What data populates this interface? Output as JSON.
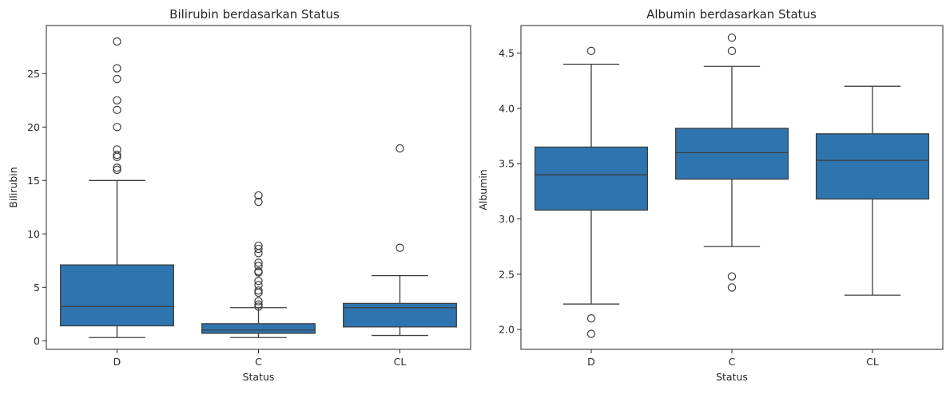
{
  "chart_data": [
    {
      "type": "box",
      "title": "Bilirubin berdasarkan Status",
      "xlabel": "Status",
      "ylabel": "Bilirubin",
      "ylim": [
        -0.8,
        29.5
      ],
      "yticks": [
        0,
        5,
        10,
        15,
        20,
        25
      ],
      "grid": false,
      "box_color": "#2e75b0",
      "categories": [
        "D",
        "C",
        "CL"
      ],
      "boxes": [
        {
          "category": "D",
          "whisker_low": 0.3,
          "q1": 1.4,
          "median": 3.2,
          "q3": 7.1,
          "whisker_high": 15.0,
          "outliers": [
            28.0,
            25.5,
            24.5,
            22.5,
            21.6,
            20.0,
            17.9,
            17.4,
            17.2,
            16.2,
            16.0
          ]
        },
        {
          "category": "C",
          "whisker_low": 0.3,
          "q1": 0.7,
          "median": 1.0,
          "q3": 1.6,
          "whisker_high": 3.1,
          "outliers": [
            13.6,
            13.0,
            8.9,
            8.6,
            8.2,
            7.3,
            7.0,
            6.5,
            6.4,
            5.6,
            5.2,
            4.7,
            4.5,
            3.7,
            3.4,
            3.2
          ]
        },
        {
          "category": "CL",
          "whisker_low": 0.5,
          "q1": 1.3,
          "median": 3.1,
          "q3": 3.5,
          "whisker_high": 6.1,
          "outliers": [
            18.0,
            8.7
          ]
        }
      ]
    },
    {
      "type": "box",
      "title": "Albumin berdasarkan Status",
      "xlabel": "Status",
      "ylabel": "Albumin",
      "ylim": [
        1.82,
        4.75
      ],
      "yticks": [
        "2.0",
        "2.5",
        "3.0",
        "3.5",
        "4.0",
        "4.5"
      ],
      "grid": false,
      "box_color": "#2e75b0",
      "categories": [
        "D",
        "C",
        "CL"
      ],
      "boxes": [
        {
          "category": "D",
          "whisker_low": 2.23,
          "q1": 3.08,
          "median": 3.4,
          "q3": 3.65,
          "whisker_high": 4.4,
          "outliers": [
            4.52,
            2.1,
            1.96
          ]
        },
        {
          "category": "C",
          "whisker_low": 2.75,
          "q1": 3.36,
          "median": 3.6,
          "q3": 3.82,
          "whisker_high": 4.38,
          "outliers": [
            4.64,
            4.52,
            2.48,
            2.38
          ]
        },
        {
          "category": "CL",
          "whisker_low": 2.31,
          "q1": 3.18,
          "median": 3.53,
          "q3": 3.77,
          "whisker_high": 4.2,
          "outliers": []
        }
      ]
    }
  ]
}
